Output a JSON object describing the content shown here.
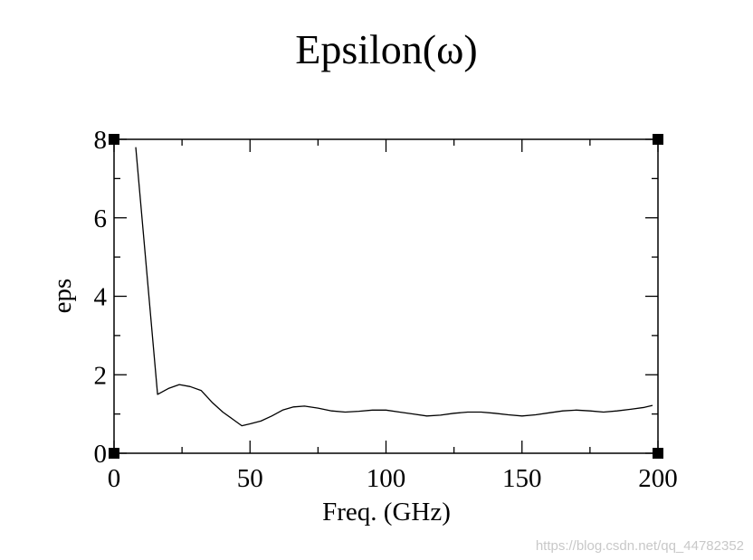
{
  "chart_data": {
    "type": "line",
    "title": "Epsilon(ω)",
    "xlabel": "Freq. (GHz)",
    "ylabel": "eps",
    "xlim": [
      0,
      200
    ],
    "ylim": [
      0,
      8
    ],
    "x_ticks": [
      0,
      50,
      100,
      150,
      200
    ],
    "x_tick_labels": [
      "0",
      "50",
      "100",
      "150",
      "200"
    ],
    "y_ticks": [
      0,
      2,
      4,
      6,
      8
    ],
    "y_tick_labels": [
      "0",
      "2",
      "4",
      "6",
      "8"
    ],
    "grid": false,
    "legend": "none",
    "series": [
      {
        "x": [
          8,
          16,
          20,
          24,
          28,
          32,
          36,
          40,
          44,
          47,
          50,
          54,
          58,
          62,
          66,
          70,
          75,
          80,
          85,
          90,
          95,
          100,
          105,
          110,
          115,
          120,
          125,
          130,
          135,
          140,
          145,
          150,
          155,
          160,
          165,
          170,
          175,
          180,
          185,
          190,
          195,
          198
        ],
        "y": [
          7.8,
          1.5,
          1.65,
          1.75,
          1.7,
          1.6,
          1.3,
          1.05,
          0.85,
          0.7,
          0.75,
          0.82,
          0.95,
          1.1,
          1.18,
          1.2,
          1.15,
          1.08,
          1.05,
          1.07,
          1.1,
          1.1,
          1.05,
          1.0,
          0.95,
          0.97,
          1.02,
          1.05,
          1.05,
          1.02,
          0.98,
          0.95,
          0.98,
          1.03,
          1.08,
          1.1,
          1.08,
          1.05,
          1.08,
          1.12,
          1.17,
          1.22
        ]
      }
    ]
  },
  "watermark": "https://blog.csdn.net/qq_44782352"
}
